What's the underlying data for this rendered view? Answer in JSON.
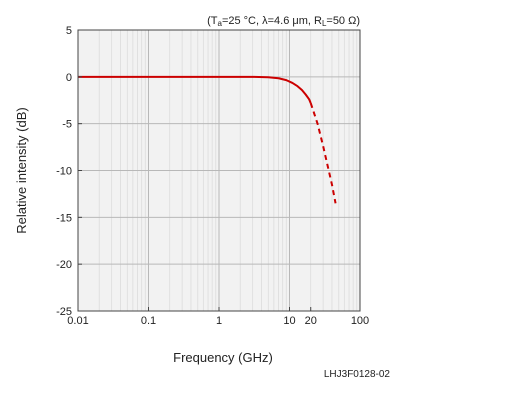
{
  "chart_data": {
    "type": "line",
    "conditions_parts": [
      "(T",
      "a",
      "=25 °C, λ=4.6 μm, R",
      "L",
      "=50 Ω)"
    ],
    "xlabel": "Frequency (GHz)",
    "ylabel": "Relative intensity (dB)",
    "x_scale": "log",
    "xlim": [
      0.01,
      100
    ],
    "ylim": [
      -25,
      5
    ],
    "x_ticks": [
      0.01,
      0.1,
      1,
      10,
      20,
      100
    ],
    "x_tick_labels": [
      "0.01",
      "0.1",
      "1",
      "10",
      "20",
      "100"
    ],
    "y_ticks": [
      5,
      0,
      -5,
      -10,
      -15,
      -20,
      -25
    ],
    "y_tick_labels": [
      "5",
      "0",
      "-5",
      "-10",
      "-15",
      "-20",
      "-25"
    ],
    "grid": true,
    "series": [
      {
        "style": "solid",
        "color": "#cc0000",
        "x": [
          0.01,
          0.1,
          1,
          3,
          5,
          7,
          9,
          11,
          13,
          15,
          17,
          19,
          20
        ],
        "y": [
          0,
          0,
          0,
          0,
          -0.05,
          -0.15,
          -0.35,
          -0.65,
          -1.0,
          -1.4,
          -1.9,
          -2.4,
          -2.8
        ]
      },
      {
        "style": "dashed",
        "color": "#cc0000",
        "x": [
          20,
          25,
          30,
          35,
          40,
          45
        ],
        "y": [
          -2.8,
          -5.0,
          -7.4,
          -9.6,
          -11.5,
          -13.5
        ]
      }
    ],
    "figure_code": "LHJ3F0128-02"
  }
}
